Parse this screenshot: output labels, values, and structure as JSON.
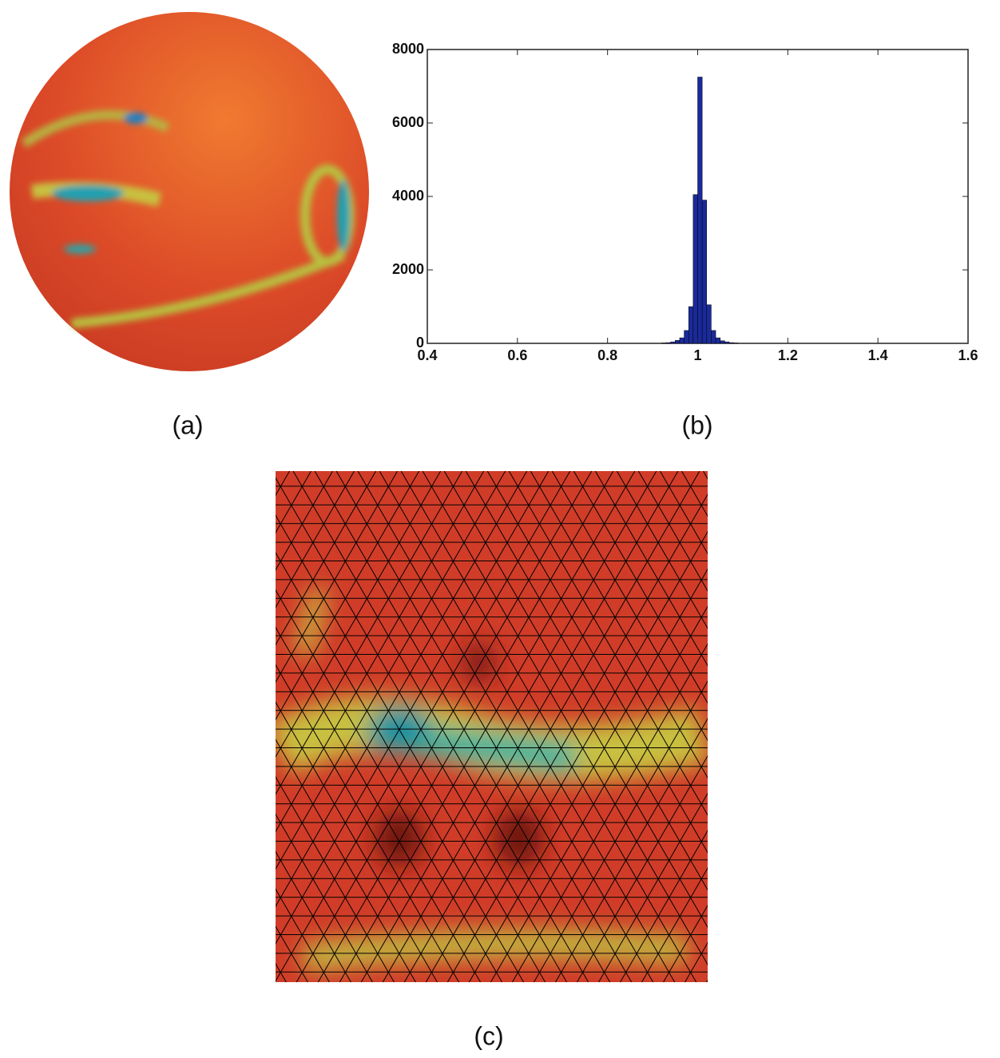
{
  "panel_labels": {
    "a": "(a)",
    "b": "(b)",
    "c": "(c)"
  },
  "chart_data": {
    "type": "histogram",
    "color": "#1a2a9a",
    "bins": [
      0.4,
      0.41,
      0.42,
      0.43,
      0.44,
      0.45,
      0.46,
      0.47,
      0.48,
      0.49,
      0.5,
      0.51,
      0.52,
      0.53,
      0.54,
      0.55,
      0.56,
      0.57,
      0.58,
      0.59,
      0.6,
      0.61,
      0.62,
      0.63,
      0.64,
      0.65,
      0.66,
      0.67,
      0.68,
      0.69,
      0.7,
      0.71,
      0.72,
      0.73,
      0.74,
      0.75,
      0.76,
      0.77,
      0.78,
      0.79,
      0.8,
      0.81,
      0.82,
      0.83,
      0.84,
      0.85,
      0.86,
      0.87,
      0.88,
      0.89,
      0.9,
      0.91,
      0.92,
      0.93,
      0.94,
      0.95,
      0.96,
      0.97,
      0.98,
      0.99,
      1.0,
      1.01,
      1.02,
      1.03,
      1.04,
      1.05,
      1.06,
      1.07,
      1.08,
      1.09,
      1.1,
      1.11,
      1.12,
      1.13,
      1.14,
      1.15,
      1.16,
      1.17,
      1.18,
      1.19,
      1.2,
      1.21,
      1.22,
      1.23,
      1.24,
      1.25,
      1.26,
      1.27,
      1.28,
      1.29,
      1.3,
      1.31,
      1.32,
      1.33,
      1.34,
      1.35,
      1.36,
      1.37,
      1.38,
      1.39,
      1.4,
      1.41,
      1.42,
      1.43,
      1.44,
      1.45,
      1.46,
      1.47,
      1.48,
      1.49,
      1.5,
      1.51,
      1.52,
      1.53,
      1.54,
      1.55,
      1.56,
      1.57,
      1.58,
      1.59,
      1.6
    ],
    "values": [
      0,
      0,
      0,
      0,
      0,
      0,
      0,
      0,
      0,
      0,
      0,
      0,
      0,
      0,
      0,
      0,
      0,
      0,
      0,
      0,
      0,
      0,
      0,
      0,
      0,
      0,
      0,
      0,
      0,
      0,
      0,
      0,
      0,
      0,
      0,
      0,
      0,
      0,
      0,
      0,
      0,
      0,
      0,
      0,
      0,
      0,
      0,
      0,
      0,
      0,
      0,
      0,
      10,
      20,
      40,
      80,
      150,
      350,
      1000,
      4050,
      7250,
      3900,
      1050,
      350,
      150,
      70,
      40,
      20,
      10,
      0,
      0,
      0,
      0,
      0,
      0,
      0,
      0,
      0,
      0,
      0,
      0,
      0,
      0,
      0,
      0,
      0,
      0,
      0,
      0,
      0,
      0,
      0,
      0,
      0,
      0,
      0,
      0,
      0,
      0,
      0,
      0,
      0,
      0,
      0,
      0,
      0,
      0,
      0,
      0,
      0,
      0,
      0,
      0,
      0,
      0,
      0,
      0,
      0,
      0,
      0
    ],
    "xlim": [
      0.4,
      1.6
    ],
    "ylim": [
      0,
      8000
    ],
    "xticks": [
      0.4,
      0.6,
      0.8,
      1,
      1.2,
      1.4,
      1.6
    ],
    "yticks": [
      0,
      2000,
      4000,
      6000,
      8000
    ]
  }
}
